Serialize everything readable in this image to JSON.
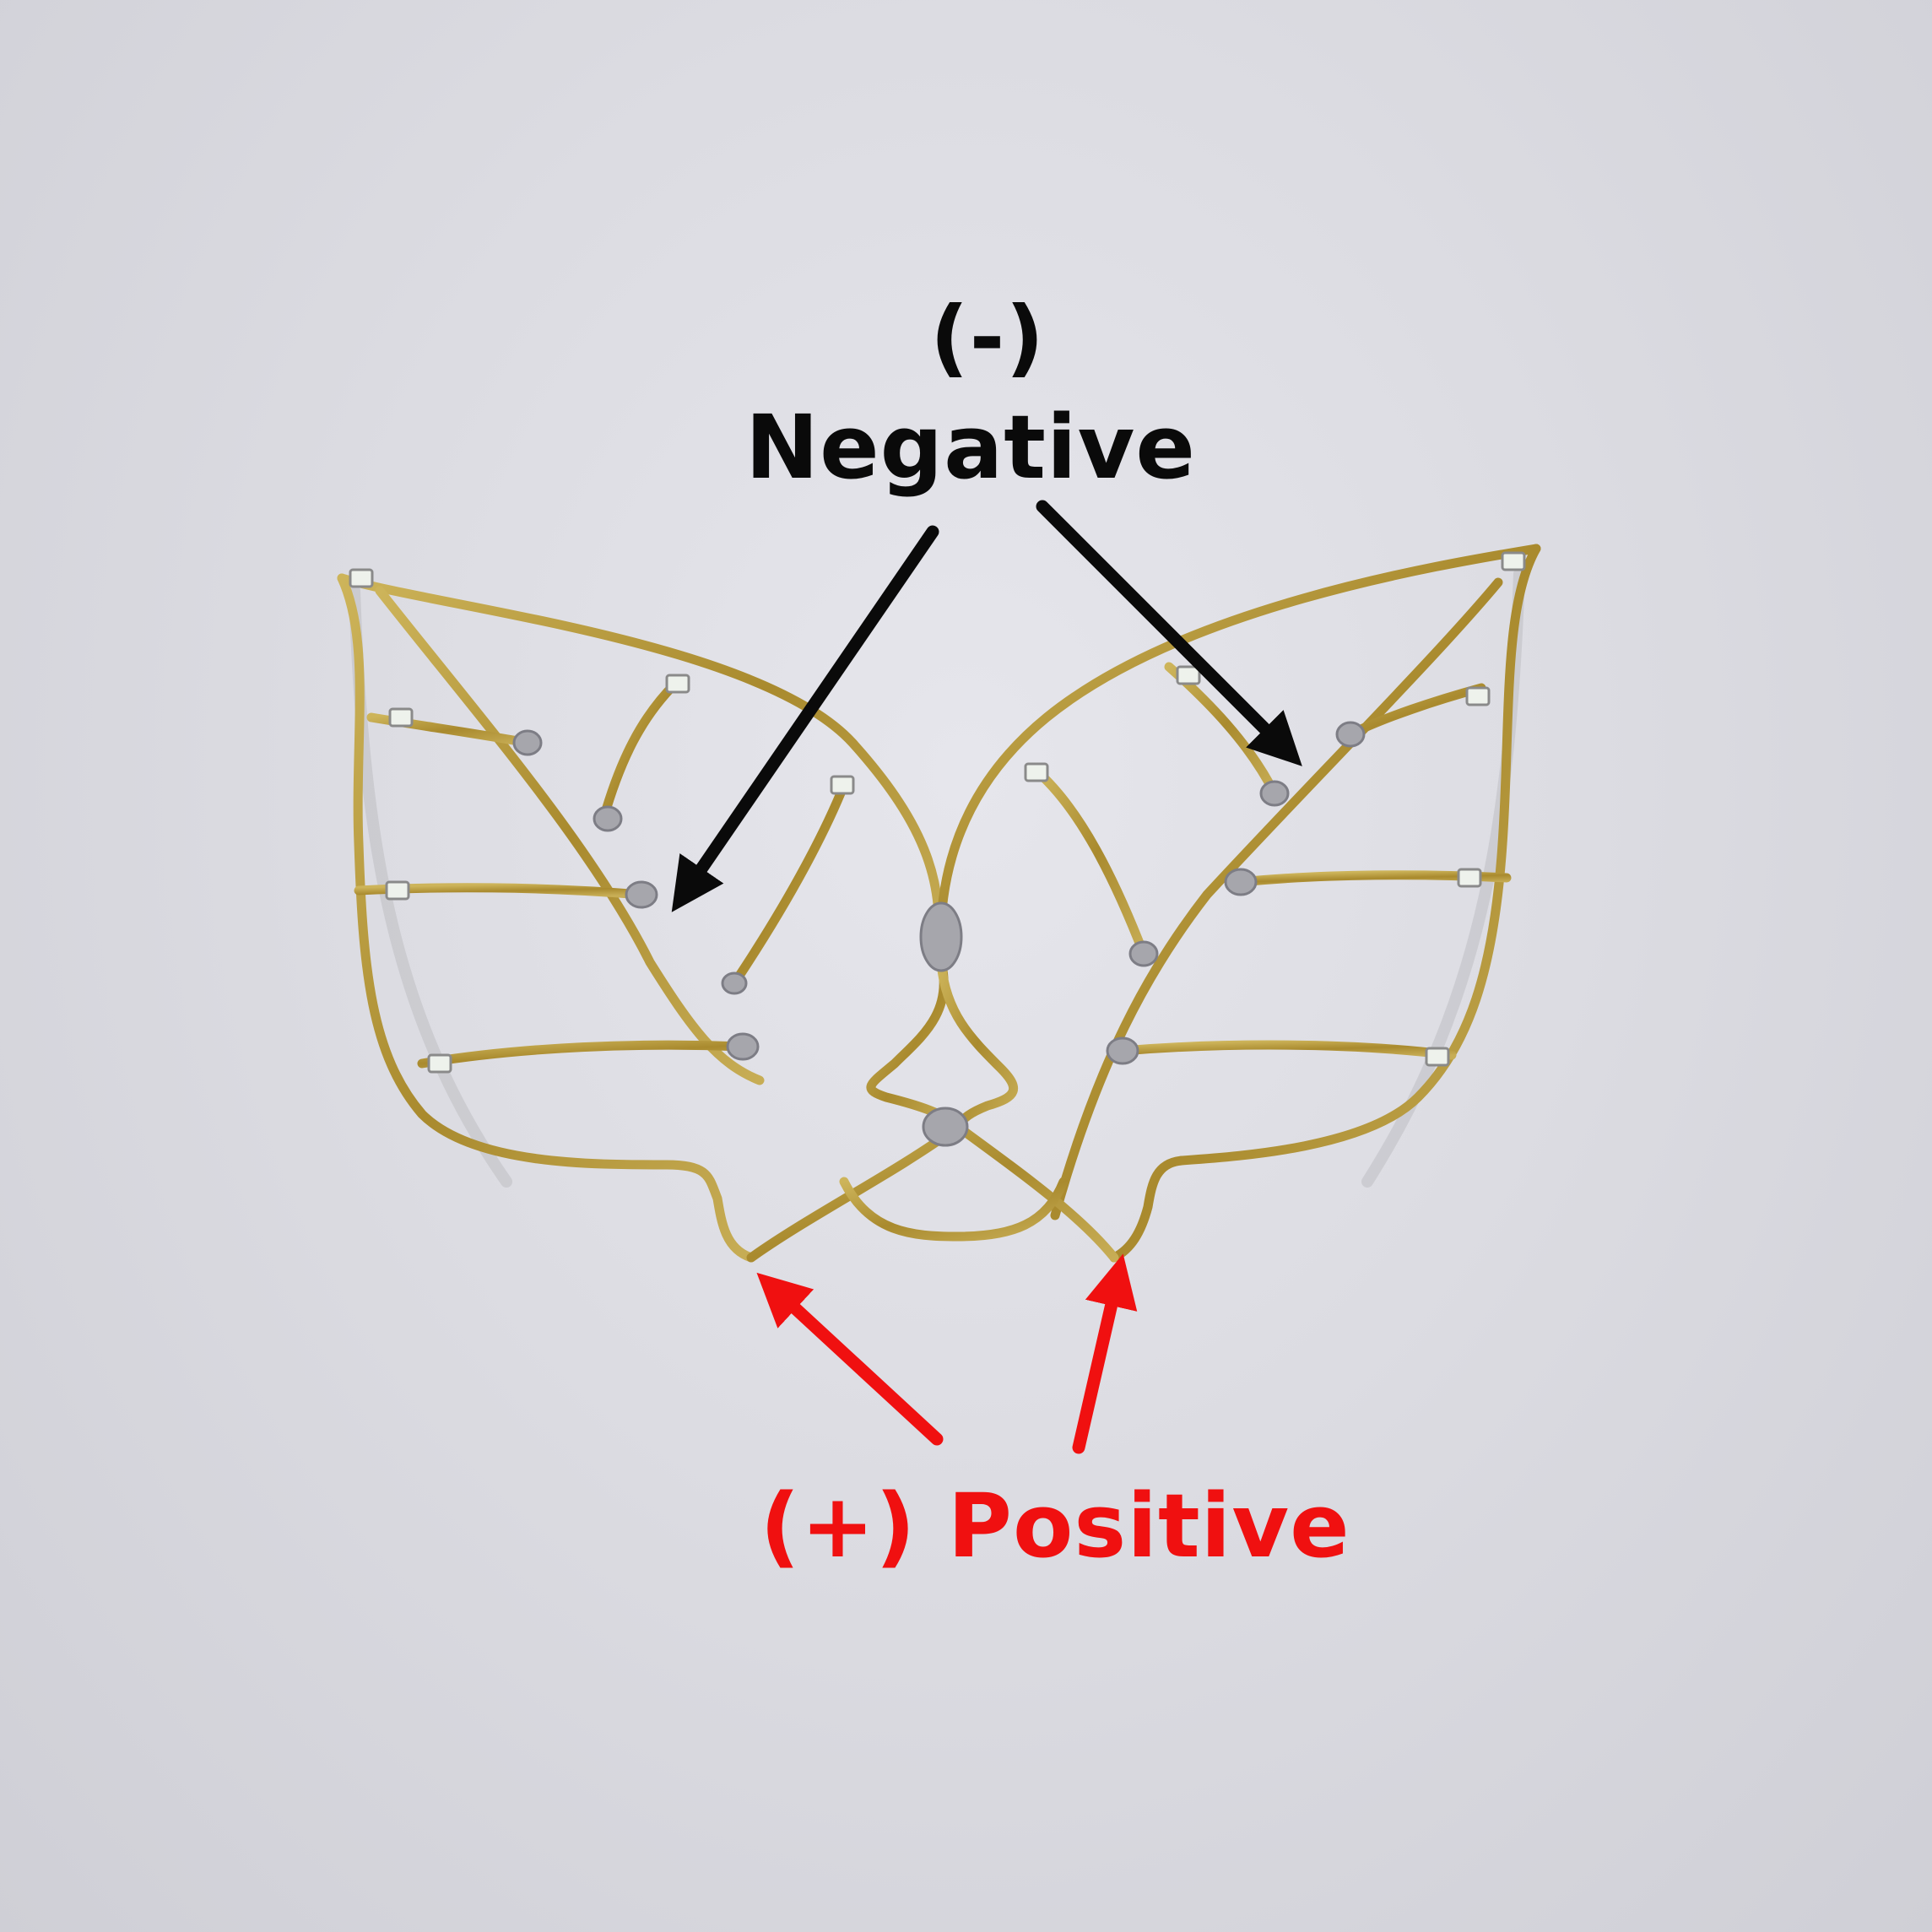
{
  "labels": {
    "negative_symbol": "(-)",
    "negative_word": "Negative",
    "positive": "(+) Positive"
  },
  "colors": {
    "background": "#dcdce2",
    "negative": "#0a0a0a",
    "positive": "#f01010",
    "wire": "#b89a3a",
    "solder": "#a6a6ac"
  },
  "image": {
    "subject": "brass-wire-leaf-led-sculpture"
  }
}
